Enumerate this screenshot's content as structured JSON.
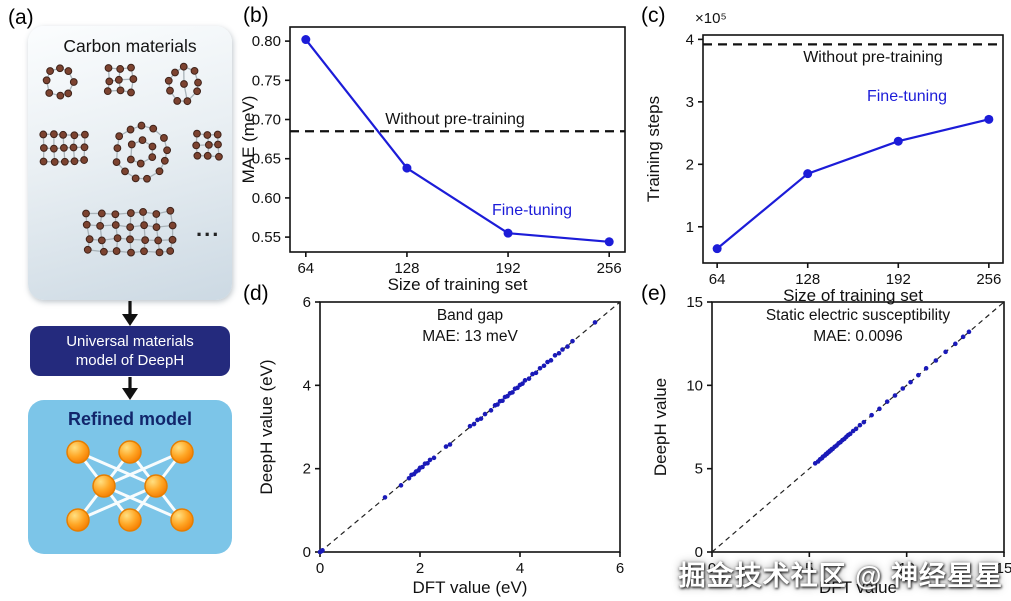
{
  "panels": {
    "a": {
      "label": "(a)",
      "carbon_title": "Carbon materials",
      "ellipsis": "...",
      "model_label": "Universal materials model of DeepH",
      "refined_label": "Refined model"
    },
    "b": {
      "label": "(b)"
    },
    "c": {
      "label": "(c)"
    },
    "d": {
      "label": "(d)"
    },
    "e": {
      "label": "(e)"
    }
  },
  "watermark": "掘金技术社区 @ 神经星星",
  "colors": {
    "accent_blue": "#1c1cd8",
    "marker_navy": "#1a1ab8",
    "deep_box": "#242a7d",
    "light_box": "#7cc5e8",
    "node_orange": "#ffa726"
  },
  "chart_data": [
    {
      "id": "b",
      "type": "line",
      "x": [
        64,
        128,
        192,
        256
      ],
      "series": [
        {
          "name": "Fine-tuning",
          "values": [
            0.802,
            0.638,
            0.555,
            0.544
          ],
          "color": "#1c1cd8"
        }
      ],
      "baseline": {
        "label": "Without pre-training",
        "value": 0.685,
        "style": "dashed",
        "color": "#111111"
      },
      "xlabel": "Size of training set",
      "ylabel": "MAE (meV)",
      "xlim": [
        54,
        266
      ],
      "ylim": [
        0.531,
        0.818
      ],
      "xticks": [
        64,
        128,
        192,
        256
      ],
      "yticks": [
        0.55,
        0.6,
        0.65,
        0.7,
        0.75,
        0.8
      ],
      "ytick_labels": [
        "0.55",
        "0.60",
        "0.65",
        "0.70",
        "0.75",
        "0.80"
      ],
      "annotations": [
        {
          "text": "Without pre-training",
          "color": "#111111"
        },
        {
          "text": "Fine-tuning",
          "color": "#1c1cd8"
        }
      ]
    },
    {
      "id": "c",
      "type": "line",
      "x": [
        64,
        128,
        192,
        256
      ],
      "series": [
        {
          "name": "Fine-tuning",
          "values": [
            0.65,
            1.85,
            2.37,
            2.72
          ],
          "color": "#1c1cd8"
        }
      ],
      "baseline": {
        "label": "Without pre-training",
        "value": 3.92,
        "style": "dashed",
        "color": "#111111"
      },
      "offset_label": "×10⁵",
      "xlabel": "Size of training set",
      "ylabel": "Training steps",
      "xlim": [
        54,
        266
      ],
      "ylim": [
        0.42,
        4.07
      ],
      "xticks": [
        64,
        128,
        192,
        256
      ],
      "yticks": [
        1,
        2,
        3,
        4
      ],
      "ytick_labels": [
        "1",
        "2",
        "3",
        "4"
      ],
      "annotations": [
        {
          "text": "Without pre-training",
          "color": "#111111"
        },
        {
          "text": "Fine-tuning",
          "color": "#1c1cd8"
        }
      ]
    },
    {
      "id": "d",
      "type": "scatter",
      "title_lines": [
        "Band gap",
        "MAE: 13 meV"
      ],
      "xlabel": "DFT value (eV)",
      "ylabel": "DeepH value (eV)",
      "xlim": [
        0,
        6
      ],
      "ylim": [
        0,
        6
      ],
      "xticks": [
        0,
        2,
        4,
        6
      ],
      "yticks": [
        0,
        2,
        4,
        6
      ],
      "diagonal": true,
      "marker_color": "#1a1ab8",
      "points": [
        [
          0,
          0
        ],
        [
          0.03,
          0.02
        ],
        [
          0.05,
          0.04
        ],
        [
          1.3,
          1.31
        ],
        [
          1.62,
          1.6
        ],
        [
          1.78,
          1.77
        ],
        [
          1.83,
          1.85
        ],
        [
          1.88,
          1.87
        ],
        [
          1.92,
          1.93
        ],
        [
          1.97,
          1.96
        ],
        [
          2.0,
          2.02
        ],
        [
          2.05,
          2.04
        ],
        [
          2.1,
          2.12
        ],
        [
          2.15,
          2.13
        ],
        [
          2.2,
          2.21
        ],
        [
          2.28,
          2.26
        ],
        [
          2.52,
          2.53
        ],
        [
          2.6,
          2.58
        ],
        [
          3.0,
          3.02
        ],
        [
          3.08,
          3.07
        ],
        [
          3.15,
          3.17
        ],
        [
          3.22,
          3.2
        ],
        [
          3.3,
          3.31
        ],
        [
          3.42,
          3.4
        ],
        [
          3.5,
          3.52
        ],
        [
          3.55,
          3.54
        ],
        [
          3.6,
          3.62
        ],
        [
          3.65,
          3.63
        ],
        [
          3.7,
          3.72
        ],
        [
          3.75,
          3.74
        ],
        [
          3.8,
          3.81
        ],
        [
          3.85,
          3.83
        ],
        [
          3.9,
          3.92
        ],
        [
          3.95,
          3.94
        ],
        [
          4.0,
          4.01
        ],
        [
          4.05,
          4.04
        ],
        [
          4.1,
          4.12
        ],
        [
          4.18,
          4.16
        ],
        [
          4.25,
          4.27
        ],
        [
          4.32,
          4.3
        ],
        [
          4.4,
          4.41
        ],
        [
          4.48,
          4.47
        ],
        [
          4.55,
          4.56
        ],
        [
          4.62,
          4.6
        ],
        [
          4.7,
          4.72
        ],
        [
          4.78,
          4.77
        ],
        [
          4.85,
          4.86
        ],
        [
          4.95,
          4.93
        ],
        [
          5.05,
          5.06
        ],
        [
          5.5,
          5.51
        ]
      ]
    },
    {
      "id": "e",
      "type": "scatter",
      "title_lines": [
        "Static electric susceptibility",
        "MAE: 0.0096"
      ],
      "xlabel": "DFT value",
      "ylabel": "DeepH value",
      "xlim": [
        0,
        15
      ],
      "ylim": [
        0,
        15
      ],
      "xticks": [
        0,
        5,
        10,
        15
      ],
      "yticks": [
        0,
        5,
        10,
        15
      ],
      "diagonal": true,
      "marker_color": "#1a1ab8",
      "points": [
        [
          5.3,
          5.32
        ],
        [
          5.45,
          5.43
        ],
        [
          5.55,
          5.56
        ],
        [
          5.65,
          5.63
        ],
        [
          5.7,
          5.72
        ],
        [
          5.8,
          5.79
        ],
        [
          5.85,
          5.87
        ],
        [
          5.9,
          5.89
        ],
        [
          5.95,
          5.97
        ],
        [
          6.0,
          5.99
        ],
        [
          6.05,
          6.07
        ],
        [
          6.1,
          6.09
        ],
        [
          6.15,
          6.17
        ],
        [
          6.2,
          6.19
        ],
        [
          6.3,
          6.31
        ],
        [
          6.4,
          6.39
        ],
        [
          6.5,
          6.52
        ],
        [
          6.6,
          6.59
        ],
        [
          6.7,
          6.71
        ],
        [
          6.8,
          6.79
        ],
        [
          6.9,
          6.91
        ],
        [
          7.0,
          7.02
        ],
        [
          7.1,
          7.09
        ],
        [
          7.25,
          7.26
        ],
        [
          7.4,
          7.39
        ],
        [
          7.6,
          7.61
        ],
        [
          7.8,
          7.79
        ],
        [
          8.2,
          8.21
        ],
        [
          8.6,
          8.59
        ],
        [
          9.0,
          9.02
        ],
        [
          9.4,
          9.39
        ],
        [
          9.8,
          9.81
        ],
        [
          10.2,
          10.19
        ],
        [
          10.6,
          10.61
        ],
        [
          11.0,
          11.02
        ],
        [
          11.5,
          11.49
        ],
        [
          12.0,
          12.01
        ],
        [
          12.5,
          12.49
        ],
        [
          12.9,
          12.91
        ],
        [
          13.2,
          13.21
        ]
      ]
    }
  ]
}
